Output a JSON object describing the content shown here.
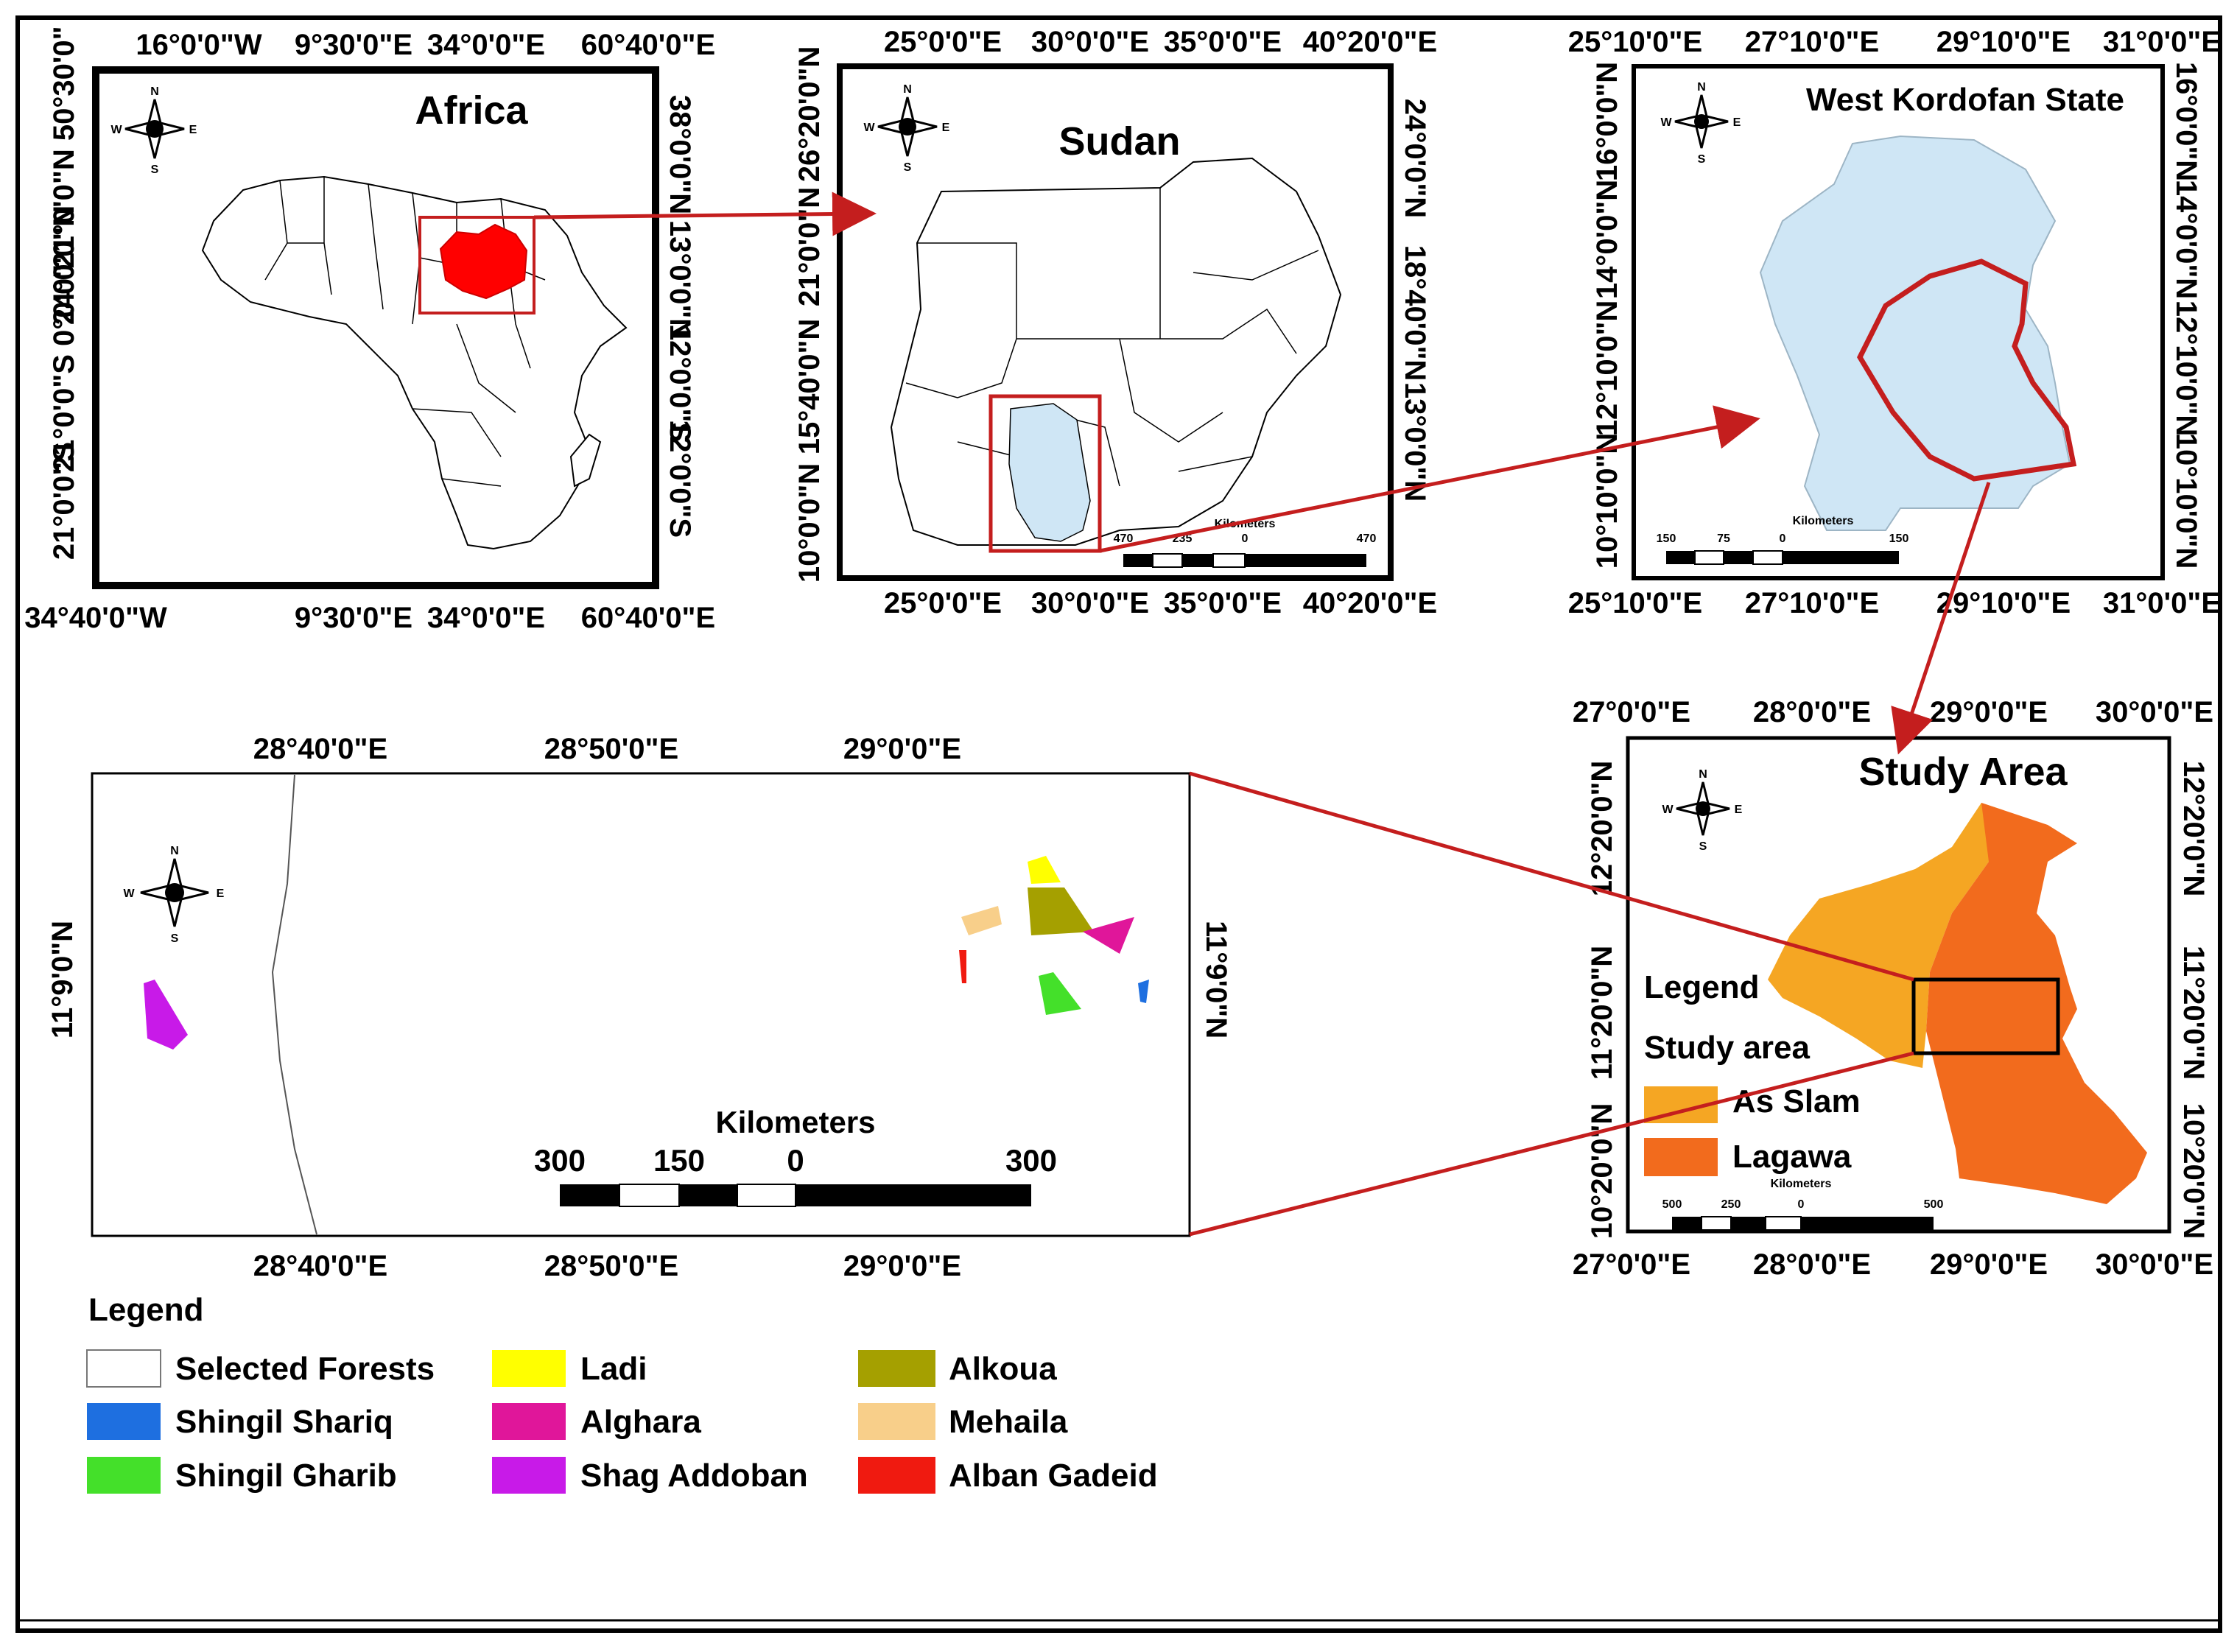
{
  "panels": {
    "africa": {
      "title": "Africa",
      "top_labels": [
        "16°0'0\"W",
        "9°30'0\"E",
        "34°0'0\"E",
        "60°40'0\"E"
      ],
      "bottom_labels": [
        "34°40'0\"W",
        "9°30'0\"E",
        "34°0'0\"E",
        "60°40'0\"E"
      ],
      "left_labels": [
        "21°0'0\"N 50°30'0\"",
        "24°0'0\"N",
        "21°0'0\"S 0°0'0\"",
        "21°0'0\"S"
      ],
      "right_labels": [
        "38°0'0\"N",
        "13°0'0\"N",
        "12°0'0\"S",
        "12°0'0\"S"
      ]
    },
    "sudan": {
      "title": "Sudan",
      "top_labels": [
        "25°0'0\"E",
        "30°0'0\"E",
        "35°0'0\"E",
        "40°20'0\"E"
      ],
      "bottom_labels": [
        "25°0'0\"E",
        "30°0'0\"E",
        "35°0'0\"E",
        "40°20'0\"E"
      ],
      "left_labels": [
        "26°20'0\"N",
        "21°0'0\"N",
        "15°40'0\"N",
        "10°0'0\"N"
      ],
      "right_labels": [
        "24°0'0\"N",
        "18°40'0\"N",
        "13°0'0\"N"
      ],
      "scale_title": "Kilometers",
      "scale_values": [
        "470",
        "235",
        "0",
        "470"
      ]
    },
    "kordofan": {
      "title": "West Kordofan State",
      "top_labels": [
        "25°10'0\"E",
        "27°10'0\"E",
        "29°10'0\"E",
        "31°0'0\"E"
      ],
      "bottom_labels": [
        "25°10'0\"E",
        "27°10'0\"E",
        "29°10'0\"E",
        "31°0'0\"E"
      ],
      "left_labels": [
        "16°0'0\"N",
        "14°0'0\"N",
        "12°10'0\"N",
        "10°10'0\"N"
      ],
      "right_labels": [
        "16°0'0\"N",
        "14°0'0\"N",
        "12°10'0\"N",
        "10°10'0\"N"
      ],
      "scale_title": "Kilometers",
      "scale_values": [
        "150",
        "75",
        "0",
        "150"
      ]
    },
    "study": {
      "title": "Study Area",
      "top_labels": [
        "27°0'0\"E",
        "28°0'0\"E",
        "29°0'0\"E",
        "30°0'0\"E"
      ],
      "bottom_labels": [
        "27°0'0\"E",
        "28°0'0\"E",
        "29°0'0\"E",
        "30°0'0\"E"
      ],
      "left_labels": [
        "12°20'0\"N",
        "11°20'0\"N",
        "10°20'0\"N"
      ],
      "right_labels": [
        "12°20'0\"N",
        "11°20'0\"N",
        "10°20'0\"N"
      ],
      "legend_title": "Legend",
      "legend_subtitle": "Study area",
      "legend_items": [
        {
          "label": "As Slam",
          "color": "#F5A623"
        },
        {
          "label": "Lagawa",
          "color": "#F26B1D"
        }
      ],
      "scale_title": "Kilometers",
      "scale_values": [
        "500",
        "250",
        "0",
        "500"
      ]
    },
    "forests": {
      "top_labels": [
        "28°40'0\"E",
        "28°50'0\"E",
        "29°0'0\"E"
      ],
      "bottom_labels": [
        "28°40'0\"E",
        "28°50'0\"E",
        "29°0'0\"E"
      ],
      "left_label": "11°9'0\"N",
      "right_label": "11°9'0\"N",
      "scale_title": "Kilometers",
      "scale_values": [
        "300",
        "150",
        "0",
        "300"
      ]
    }
  },
  "compass": {
    "n": "N",
    "s": "S",
    "e": "E",
    "w": "W"
  },
  "main_legend": {
    "title": "Legend",
    "items": [
      {
        "label": "Selected Forests",
        "color": "#FFFFFF"
      },
      {
        "label": "Ladi",
        "color": "#FFFF00"
      },
      {
        "label": "Alkoua",
        "color": "#A5A000"
      },
      {
        "label": "Shingil Shariq",
        "color": "#1E6FE0"
      },
      {
        "label": "Alghara",
        "color": "#E0169A"
      },
      {
        "label": "Mehaila",
        "color": "#F8CF8A"
      },
      {
        "label": "Shingil Gharib",
        "color": "#44E02A"
      },
      {
        "label": "Shag Addoban",
        "color": "#C81AE8"
      },
      {
        "label": "Alban Gadeid",
        "color": "#F01A10"
      }
    ]
  },
  "colors": {
    "sudan_fill": "#FF0000",
    "kordofan_fill": "#CFE6F5",
    "highlight": "#C41E1E",
    "as_slam": "#F5A623",
    "lagawa": "#F26B1D"
  }
}
